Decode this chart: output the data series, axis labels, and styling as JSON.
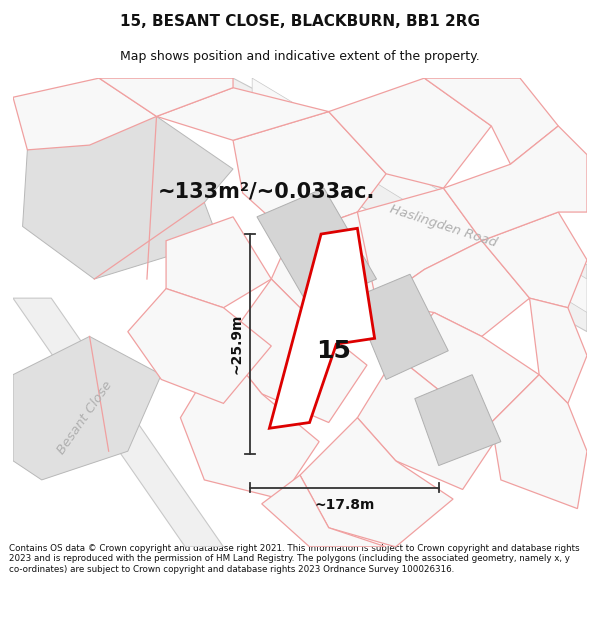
{
  "title": "15, BESANT CLOSE, BLACKBURN, BB1 2RG",
  "subtitle": "Map shows position and indicative extent of the property.",
  "footer": "Contains OS data © Crown copyright and database right 2021. This information is subject to Crown copyright and database rights 2023 and is reproduced with the permission of HM Land Registry. The polygons (including the associated geometry, namely x, y co-ordinates) are subject to Crown copyright and database rights 2023 Ordnance Survey 100026316.",
  "area_label": "~133m²/~0.033ac.",
  "number_label": "15",
  "dim_h": "~25.9m",
  "dim_w": "~17.8m",
  "road_label_1": "Haslingden Road",
  "road_label_2": "Besant Close",
  "plot_color_red": "#dd0000",
  "pink_line": "#f0a0a0",
  "gray_parcel_fill": "#e0e0e0",
  "white_parcel_fill": "#f8f8f8",
  "road_gray_line": "#c8c8c8",
  "haslingden_road_color": "#c8c8c8"
}
